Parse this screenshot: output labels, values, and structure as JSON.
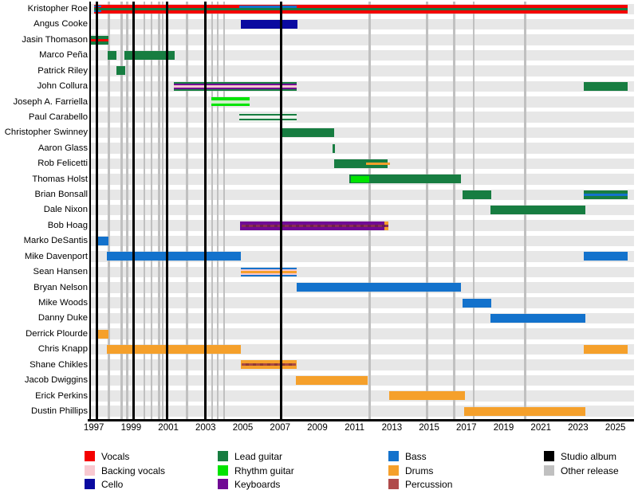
{
  "chart_data": {
    "type": "bar",
    "subtype": "membership-timeline-gantt",
    "title": "",
    "xlabel": "",
    "ylabel": "",
    "x_axis": {
      "range_years": [
        1996.8,
        2026.0
      ],
      "tick_labels": [
        "1997",
        "1999",
        "2001",
        "2003",
        "2005",
        "2007",
        "2009",
        "2011",
        "2013",
        "2015",
        "2017",
        "2019",
        "2021",
        "2023",
        "2025"
      ],
      "tick_years": [
        1997,
        1999,
        2001,
        2003,
        2005,
        2007,
        2009,
        2011,
        2013,
        2015,
        2017,
        2019,
        2021,
        2023,
        2025
      ]
    },
    "colors": {
      "vocals": "#f40000",
      "backing": "#f8c8d0",
      "cello": "#0a0aa0",
      "lead": "#177d41",
      "rhythm": "#00e400",
      "keys": "#700a94",
      "bass": "#1372cc",
      "drums": "#f5a02b",
      "perc": "#b04a4a",
      "album": "#000000",
      "other": "#c0c0c0",
      "pale_green": "#cdf0c8",
      "pale_mint": "#eaf2ea",
      "perc_keys": "#8a2d55",
      "perc_keys2": "#6e2047",
      "perc_drums": "#a94a42",
      "perc_drums2": "#8f3a36",
      "band_bg": "#e7e7e7"
    },
    "studio_album_lines_years": [
      1997.15,
      1999.12,
      2000.95,
      2003.0,
      2007.05
    ],
    "other_release_lines_years": [
      1997.8,
      1998.5,
      1998.8,
      1999.72,
      2000.1,
      2000.5,
      2000.7,
      2002.0,
      2003.35,
      2003.65,
      2004.0,
      2011.8,
      2014.9,
      2016.35,
      2017.4,
      2020.15
    ],
    "rows": [
      {
        "name": "Kristopher Roe",
        "roles": [
          "Vocals",
          "Lead guitar",
          "Bass"
        ],
        "bars": [
          {
            "s": 1997,
            "e": 2025.65,
            "t": 0,
            "h": 1,
            "c": "vocals"
          },
          {
            "s": 1997,
            "e": 2025.65,
            "t": 0.36,
            "h": 0.28,
            "c": "lead"
          },
          {
            "s": 1997,
            "e": 1997.4,
            "t": 0.12,
            "h": 0.2,
            "c": "bass"
          },
          {
            "s": 1997,
            "e": 1997.4,
            "t": 0.68,
            "h": 0.2,
            "c": "bass"
          },
          {
            "s": 2004.8,
            "e": 2007.9,
            "t": 0.12,
            "h": 0.24,
            "c": "bass"
          }
        ]
      },
      {
        "name": "Angus Cooke",
        "roles": [
          "Cello"
        ],
        "bars": [
          {
            "s": 2004.9,
            "e": 2007.95,
            "t": 0,
            "h": 1,
            "c": "cello"
          }
        ]
      },
      {
        "name": "Jasin Thomason",
        "roles": [
          "Lead guitar",
          "Vocals"
        ],
        "bars": [
          {
            "s": 1996.8,
            "e": 1997.8,
            "t": 0,
            "h": 1,
            "c": "lead"
          },
          {
            "s": 1996.8,
            "e": 1997.8,
            "t": 0.36,
            "h": 0.28,
            "c": "vocals"
          }
        ]
      },
      {
        "name": "Marco Peña",
        "roles": [
          "Lead guitar"
        ],
        "bars": [
          {
            "s": 1997.75,
            "e": 1998.2,
            "t": 0,
            "h": 1,
            "c": "lead"
          },
          {
            "s": 1998.65,
            "e": 2001.35,
            "t": 0,
            "h": 1,
            "c": "lead"
          }
        ]
      },
      {
        "name": "Patrick Riley",
        "roles": [
          "Lead guitar"
        ],
        "bars": [
          {
            "s": 1998.2,
            "e": 1998.7,
            "t": 0,
            "h": 1,
            "c": "lead"
          }
        ]
      },
      {
        "name": "John Collura",
        "roles": [
          "Lead guitar",
          "Keyboards",
          "Backing vocals"
        ],
        "bars": [
          {
            "s": 2001.3,
            "e": 2007.9,
            "t": 0,
            "h": 1,
            "c": "lead"
          },
          {
            "s": 2001.3,
            "e": 2007.9,
            "t": 0.18,
            "h": 0.64,
            "c": "keys"
          },
          {
            "s": 2001.3,
            "e": 2007.9,
            "t": 0.36,
            "h": 0.28,
            "c": "backing"
          },
          {
            "s": 2023.3,
            "e": 2025.65,
            "t": 0,
            "h": 1,
            "c": "lead"
          }
        ]
      },
      {
        "name": "Joseph A. Farriella",
        "roles": [
          "Rhythm guitar"
        ],
        "bars": [
          {
            "s": 2003.3,
            "e": 2005.35,
            "t": 0,
            "h": 1,
            "c": "rhythm"
          },
          {
            "s": 2003.3,
            "e": 2005.35,
            "t": 0.33,
            "h": 0.34,
            "c": "pale_green"
          }
        ]
      },
      {
        "name": "Paul Carabello",
        "roles": [
          "Lead guitar"
        ],
        "bars": [
          {
            "s": 2004.8,
            "e": 2007.9,
            "t": 0,
            "h": 1,
            "c": "pale_mint"
          },
          {
            "s": 2004.8,
            "e": 2007.9,
            "t": 0.13,
            "h": 0.18,
            "c": "lead"
          },
          {
            "s": 2004.8,
            "e": 2007.9,
            "t": 0.67,
            "h": 0.18,
            "c": "lead"
          }
        ]
      },
      {
        "name": "Christopher Swinney",
        "roles": [
          "Lead guitar"
        ],
        "bars": [
          {
            "s": 2007.05,
            "e": 2009.9,
            "t": 0,
            "h": 1,
            "c": "lead"
          }
        ]
      },
      {
        "name": "Aaron Glass",
        "roles": [
          "Lead guitar"
        ],
        "bars": [
          {
            "s": 2009.8,
            "e": 2009.95,
            "t": 0,
            "h": 1,
            "c": "lead"
          }
        ]
      },
      {
        "name": "Rob Felicetti",
        "roles": [
          "Lead guitar",
          "Drums"
        ],
        "bars": [
          {
            "s": 2009.9,
            "e": 2012.75,
            "t": 0,
            "h": 1,
            "c": "lead"
          },
          {
            "s": 2011.6,
            "e": 2012.9,
            "t": 0.33,
            "h": 0.34,
            "c": "drums"
          }
        ]
      },
      {
        "name": "Thomas Holst",
        "roles": [
          "Lead guitar",
          "Rhythm guitar"
        ],
        "bars": [
          {
            "s": 2010.7,
            "e": 2016.72,
            "t": 0,
            "h": 1,
            "c": "lead"
          },
          {
            "s": 2010.8,
            "e": 2011.78,
            "t": 0.15,
            "h": 0.7,
            "c": "rhythm"
          }
        ]
      },
      {
        "name": "Brian Bonsall",
        "roles": [
          "Lead guitar",
          "Bass"
        ],
        "bars": [
          {
            "s": 2016.8,
            "e": 2018.35,
            "t": 0,
            "h": 1,
            "c": "lead"
          },
          {
            "s": 2023.3,
            "e": 2025.65,
            "t": 0,
            "h": 1,
            "c": "lead"
          },
          {
            "s": 2023.3,
            "e": 2025.65,
            "t": 0.36,
            "h": 0.28,
            "c": "bass"
          }
        ]
      },
      {
        "name": "Dale Nixon",
        "roles": [
          "Lead guitar"
        ],
        "bars": [
          {
            "s": 2018.3,
            "e": 2023.37,
            "t": 0,
            "h": 1,
            "c": "lead"
          }
        ]
      },
      {
        "name": "Bob Hoag",
        "roles": [
          "Keyboards",
          "Percussion",
          "Drums"
        ],
        "bars": [
          {
            "s": 2004.85,
            "e": 2012.8,
            "t": 0,
            "h": 1,
            "c": "keys"
          },
          {
            "s": 2012.6,
            "e": 2012.8,
            "t": 0,
            "h": 1,
            "c": "drums"
          },
          {
            "s": 2004.95,
            "e": 2012.8,
            "t": 0.36,
            "h": 0.28,
            "c": "perc_keys",
            "dash": "perc_keys2"
          }
        ]
      },
      {
        "name": "Marko DeSantis",
        "roles": [
          "Bass"
        ],
        "bars": [
          {
            "s": 1997.1,
            "e": 1997.8,
            "t": 0,
            "h": 1,
            "c": "bass"
          }
        ]
      },
      {
        "name": "Mike Davenport",
        "roles": [
          "Bass"
        ],
        "bars": [
          {
            "s": 1997.7,
            "e": 2004.9,
            "t": 0,
            "h": 1,
            "c": "bass"
          },
          {
            "s": 2023.3,
            "e": 2025.65,
            "t": 0,
            "h": 1,
            "c": "bass"
          }
        ]
      },
      {
        "name": "Sean Hansen",
        "roles": [
          "Bass",
          "Backing vocals",
          "Drums"
        ],
        "bars": [
          {
            "s": 2004.9,
            "e": 2007.9,
            "t": 0,
            "h": 1,
            "c": "bass"
          },
          {
            "s": 2004.9,
            "e": 2007.9,
            "t": 0.18,
            "h": 0.64,
            "c": "backing"
          },
          {
            "s": 2004.9,
            "e": 2007.9,
            "t": 0.36,
            "h": 0.28,
            "c": "drums"
          }
        ]
      },
      {
        "name": "Bryan Nelson",
        "roles": [
          "Bass"
        ],
        "bars": [
          {
            "s": 2007.9,
            "e": 2016.72,
            "t": 0,
            "h": 1,
            "c": "bass"
          }
        ]
      },
      {
        "name": "Mike Woods",
        "roles": [
          "Bass"
        ],
        "bars": [
          {
            "s": 2016.8,
            "e": 2018.35,
            "t": 0,
            "h": 1,
            "c": "bass"
          }
        ]
      },
      {
        "name": "Danny Duke",
        "roles": [
          "Bass"
        ],
        "bars": [
          {
            "s": 2018.3,
            "e": 2023.37,
            "t": 0,
            "h": 1,
            "c": "bass"
          }
        ]
      },
      {
        "name": "Derrick Plourde",
        "roles": [
          "Drums"
        ],
        "bars": [
          {
            "s": 1997.1,
            "e": 1997.8,
            "t": 0,
            "h": 1,
            "c": "drums"
          }
        ]
      },
      {
        "name": "Chris Knapp",
        "roles": [
          "Drums"
        ],
        "bars": [
          {
            "s": 1997.7,
            "e": 2004.9,
            "t": 0,
            "h": 1,
            "c": "drums"
          },
          {
            "s": 2023.3,
            "e": 2025.65,
            "t": 0,
            "h": 1,
            "c": "drums"
          }
        ]
      },
      {
        "name": "Shane Chikles",
        "roles": [
          "Drums",
          "Percussion"
        ],
        "bars": [
          {
            "s": 2004.9,
            "e": 2007.9,
            "t": 0,
            "h": 1,
            "c": "drums"
          },
          {
            "s": 2004.95,
            "e": 2007.85,
            "t": 0.36,
            "h": 0.28,
            "c": "perc_drums",
            "dash": "perc_drums2"
          }
        ]
      },
      {
        "name": "Jacob Dwiggins",
        "roles": [
          "Drums"
        ],
        "bars": [
          {
            "s": 2007.85,
            "e": 2011.7,
            "t": 0,
            "h": 1,
            "c": "drums"
          }
        ]
      },
      {
        "name": "Erick Perkins",
        "roles": [
          "Drums"
        ],
        "bars": [
          {
            "s": 2012.85,
            "e": 2016.92,
            "t": 0,
            "h": 1,
            "c": "drums"
          }
        ]
      },
      {
        "name": "Dustin Phillips",
        "roles": [
          "Drums"
        ],
        "bars": [
          {
            "s": 2016.9,
            "e": 2023.37,
            "t": 0,
            "h": 1,
            "c": "drums"
          }
        ]
      }
    ],
    "legend": {
      "position": "bottom",
      "columns": [
        {
          "items": [
            {
              "c": "vocals",
              "label": "Vocals"
            },
            {
              "c": "backing",
              "label": "Backing vocals"
            },
            {
              "c": "cello",
              "label": "Cello"
            }
          ]
        },
        {
          "items": [
            {
              "c": "lead",
              "label": "Lead guitar"
            },
            {
              "c": "rhythm",
              "label": "Rhythm guitar"
            },
            {
              "c": "keys",
              "label": "Keyboards"
            }
          ]
        },
        {
          "items": [
            {
              "c": "bass",
              "label": "Bass"
            },
            {
              "c": "drums",
              "label": "Drums"
            },
            {
              "c": "perc",
              "label": "Percussion"
            }
          ]
        },
        {
          "items": [
            {
              "c": "album",
              "label": "Studio album"
            },
            {
              "c": "other",
              "label": "Other release"
            }
          ]
        }
      ]
    }
  }
}
